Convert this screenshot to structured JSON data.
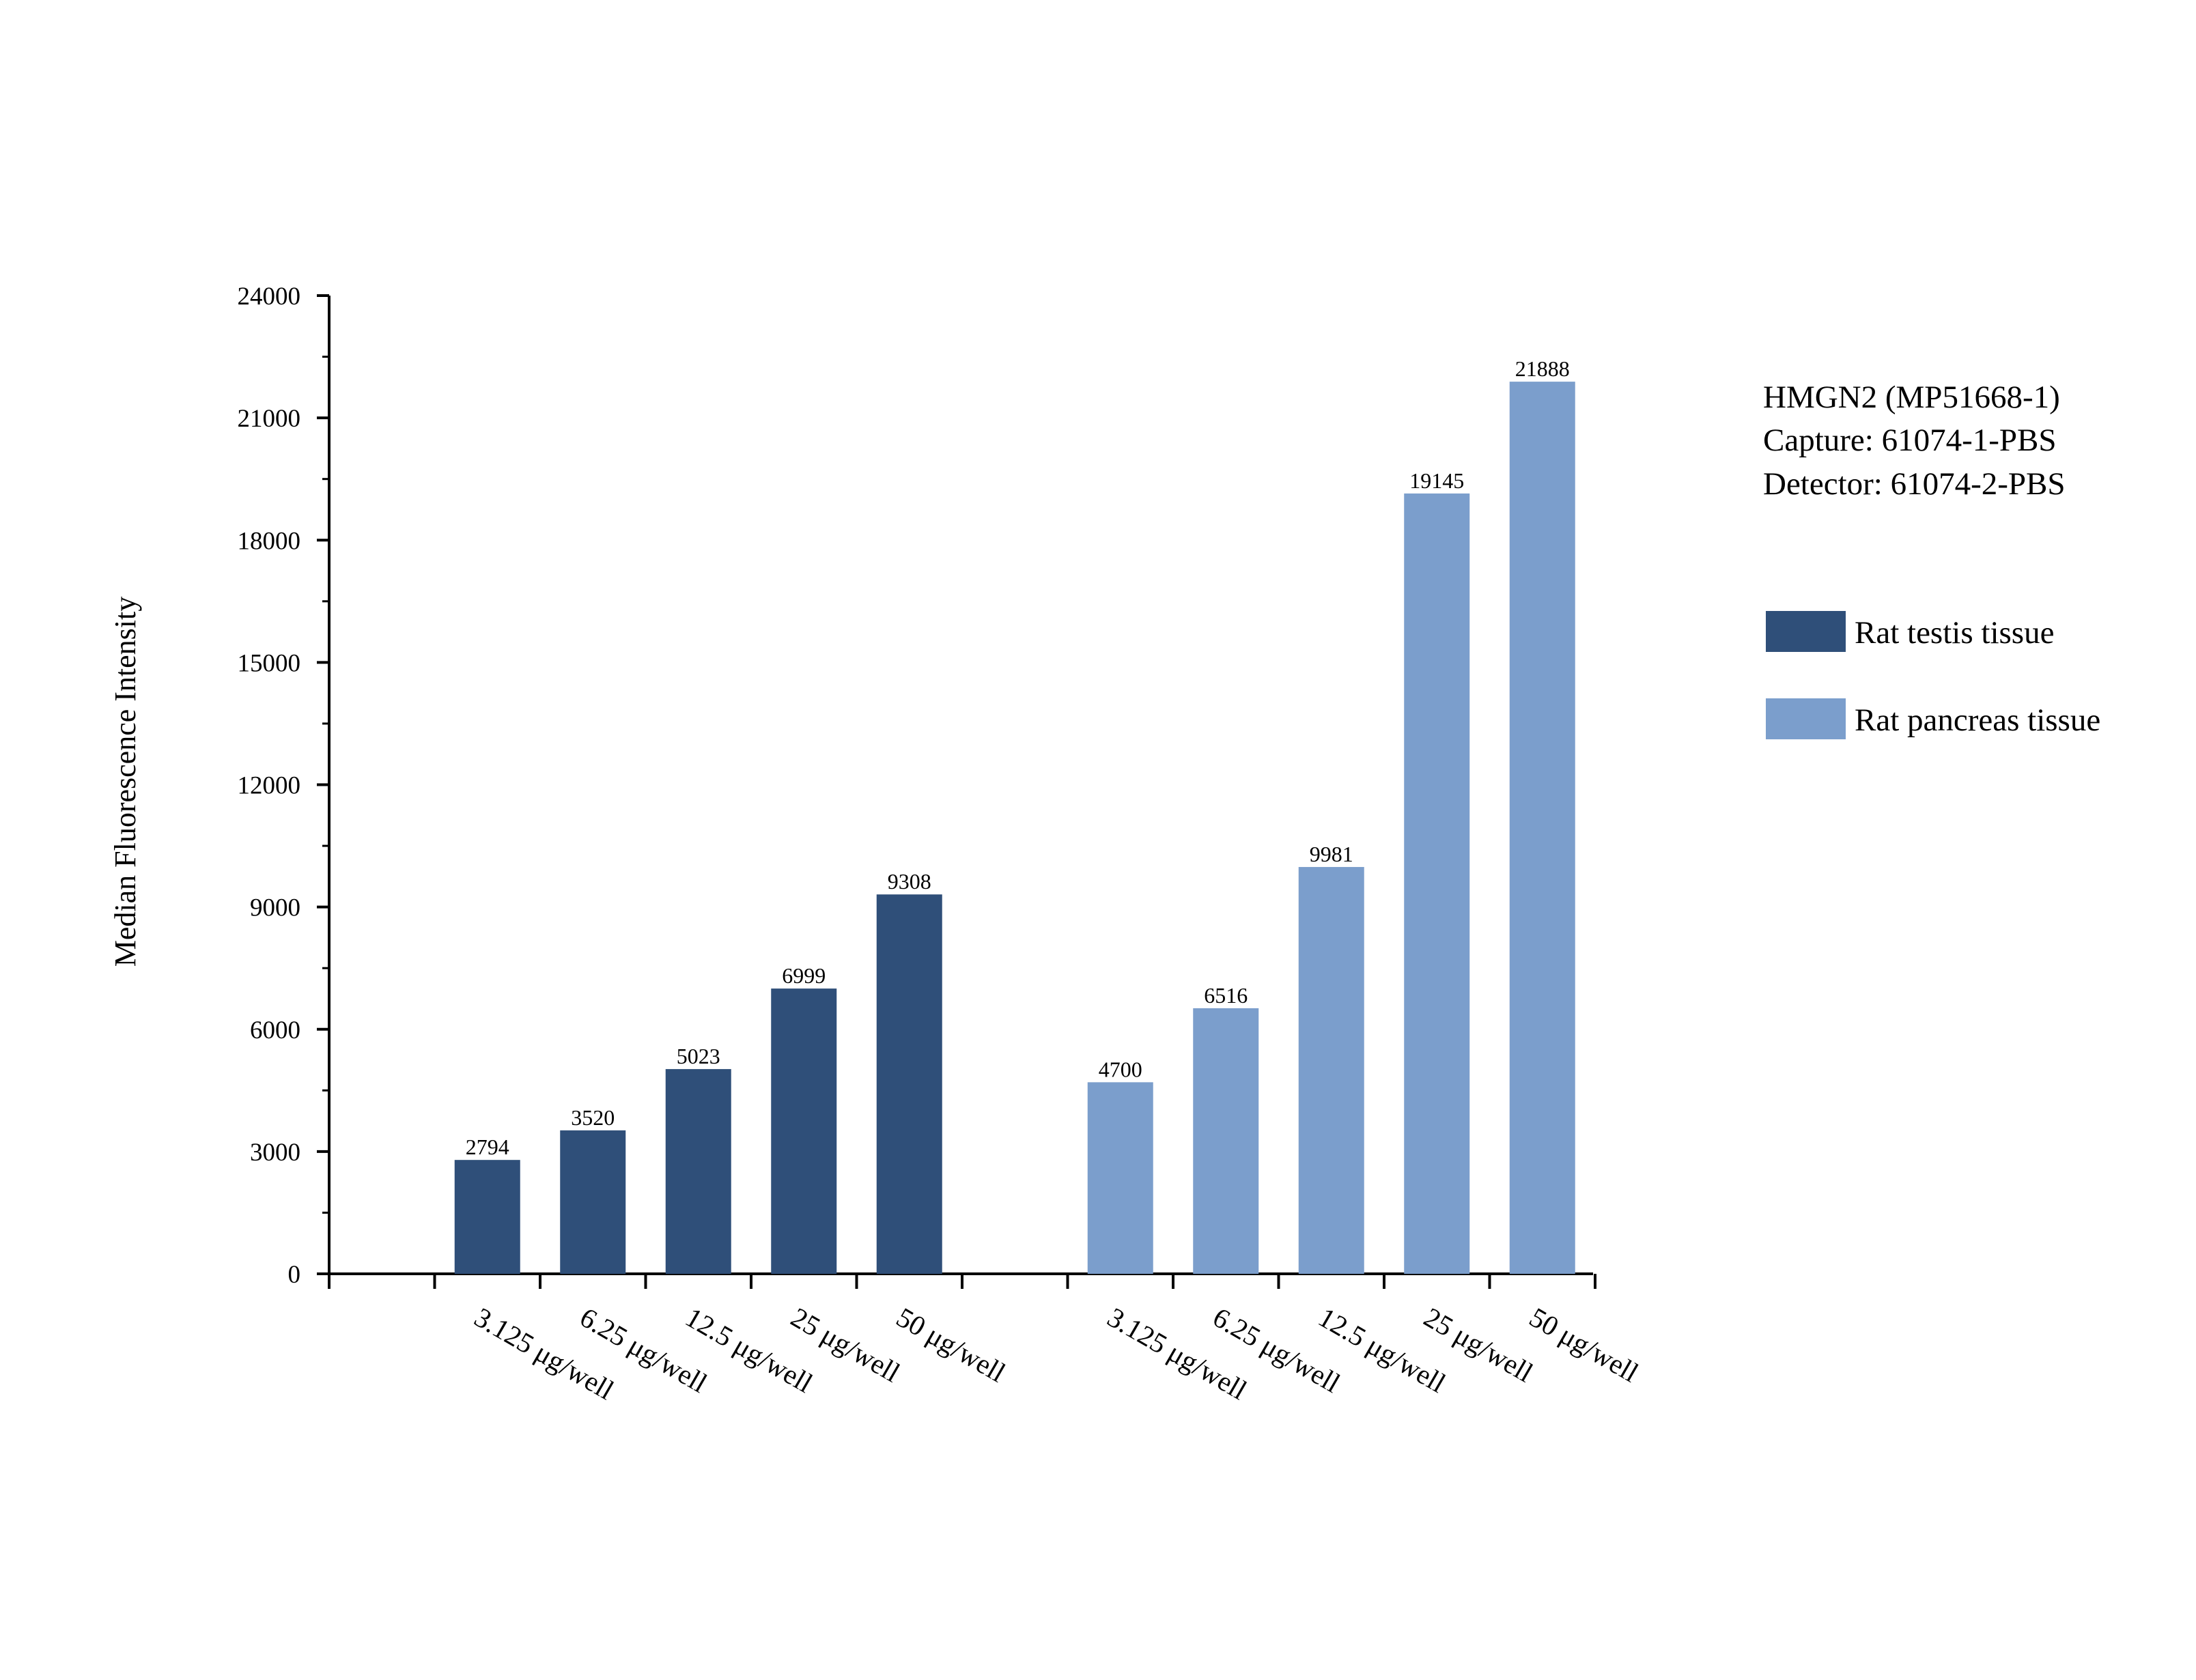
{
  "chart_data": {
    "type": "bar",
    "title": "",
    "xlabel": "",
    "ylabel": "Median Fluorescence Intensity",
    "ylim": [
      0,
      24000
    ],
    "yticks": [
      0,
      3000,
      6000,
      9000,
      12000,
      15000,
      18000,
      21000,
      24000
    ],
    "grid": false,
    "legend_position": "right",
    "annotation_lines": [
      "HMGN2 (MP51668-1)",
      "Capture: 61074-1-PBS",
      "Detector: 61074-2-PBS"
    ],
    "groups": [
      {
        "name": "Rat testis tissue",
        "color": "#2f4f79",
        "categories": [
          "3.125 μg/well",
          "6.25 μg/well",
          "12.5 μg/well",
          "25 μg/well",
          "50 μg/well"
        ],
        "values": [
          2794,
          3520,
          5023,
          6999,
          9308
        ]
      },
      {
        "name": "Rat pancreas tissue",
        "color": "#7b9ecc",
        "categories": [
          "3.125 μg/well",
          "6.25 μg/well",
          "12.5 μg/well",
          "25 μg/well",
          "50 μg/well"
        ],
        "values": [
          4700,
          6516,
          9981,
          19145,
          21888
        ]
      }
    ]
  }
}
